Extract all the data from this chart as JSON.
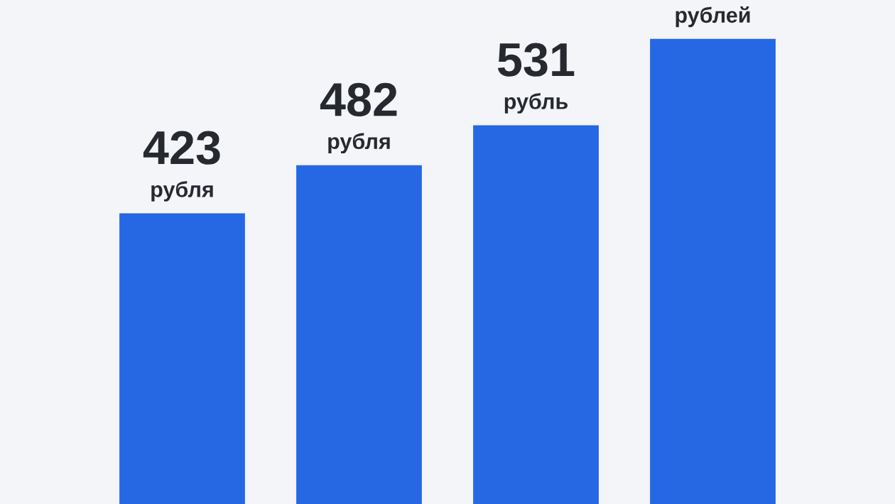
{
  "chart_data": {
    "type": "bar",
    "categories": [
      null,
      null,
      null,
      null
    ],
    "values": [
      423,
      482,
      531,
      637
    ],
    "value_labels": [
      "423\nрубля",
      "482\nрубля",
      "531\nрубль",
      "рублей"
    ],
    "color": "#2668e3"
  }
}
